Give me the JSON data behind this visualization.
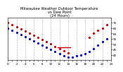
{
  "title": "Milwaukee Weather Outdoor Temperature\nvs Dew Point\n(24 Hours)",
  "title_fontsize": 3.8,
  "background_color": "#ffffff",
  "grid_color": "#aaaaaa",
  "temp_color": "#cc0000",
  "dew_color": "#0000cc",
  "xlim": [
    0,
    24
  ],
  "ylim": [
    35,
    75
  ],
  "tick_fontsize": 3.0,
  "yticks": [
    40,
    45,
    50,
    55,
    60,
    65,
    70
  ],
  "xtick_labels": [
    "0",
    "",
    "2",
    "",
    "4",
    "",
    "6",
    "",
    "8",
    "",
    "10",
    "",
    "12",
    "",
    "14",
    "",
    "16",
    "",
    "18",
    "",
    "20",
    "",
    "22",
    "",
    "24"
  ],
  "xticks": [
    0,
    1,
    2,
    3,
    4,
    5,
    6,
    7,
    8,
    9,
    10,
    11,
    12,
    13,
    14,
    15,
    16,
    17,
    18,
    19,
    20,
    21,
    22,
    23,
    24
  ],
  "temp_x": [
    0,
    1,
    2,
    3,
    4,
    5,
    6,
    7,
    8,
    9,
    10,
    11,
    12,
    13,
    14,
    19,
    20,
    21,
    22,
    23
  ],
  "temp_y": [
    70,
    68,
    66,
    64,
    62,
    60,
    58,
    56,
    54,
    52,
    50,
    48,
    46,
    44,
    42,
    56,
    60,
    63,
    65,
    68
  ],
  "dew_x": [
    0,
    1,
    2,
    3,
    4,
    5,
    6,
    7,
    8,
    9,
    10,
    11,
    12,
    13,
    14,
    15,
    16,
    17,
    18,
    19,
    20,
    21,
    22,
    23
  ],
  "dew_y": [
    65,
    63,
    61,
    59,
    57,
    55,
    53,
    51,
    49,
    47,
    45,
    43,
    41,
    39,
    38,
    38,
    39,
    40,
    41,
    43,
    46,
    49,
    52,
    55
  ],
  "hline_x": [
    11.5,
    14.5
  ],
  "hline_y": [
    47,
    47
  ],
  "vgrid_positions": [
    2,
    4,
    6,
    8,
    10,
    12,
    14,
    16,
    18,
    20,
    22
  ],
  "marker_size": 1.3,
  "yaxis_right": true
}
